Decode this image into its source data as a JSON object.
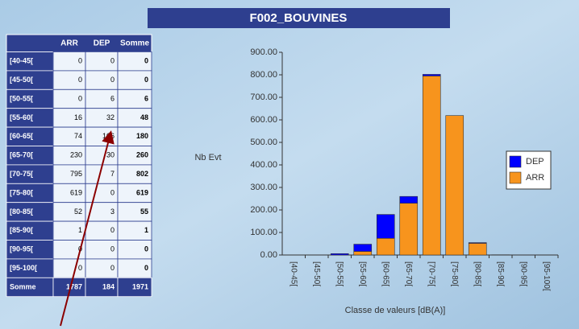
{
  "title": "F002_BOUVINES",
  "table": {
    "header": [
      "ARR",
      "DEP",
      "Somme"
    ],
    "rows": [
      [
        "[40-45[",
        0,
        0,
        0
      ],
      [
        "[45-50[",
        0,
        0,
        0
      ],
      [
        "[50-55[",
        0,
        6,
        6
      ],
      [
        "[55-60[",
        16,
        32,
        48
      ],
      [
        "[60-65[",
        74,
        106,
        180
      ],
      [
        "[65-70[",
        230,
        30,
        260
      ],
      [
        "[70-75[",
        795,
        7,
        802
      ],
      [
        "[75-80[",
        619,
        0,
        619
      ],
      [
        "[80-85[",
        52,
        3,
        55
      ],
      [
        "[85-90[",
        1,
        0,
        1
      ],
      [
        "[90-95[",
        0,
        0,
        0
      ],
      [
        "[95-100[",
        0,
        0,
        0
      ]
    ],
    "total": [
      "Somme",
      1787,
      184,
      1971
    ]
  },
  "chart_data": {
    "type": "stacked_bar",
    "ylabel": "Nb Evt",
    "xlabel": "Classe de valeurs [dB(A)]",
    "categories": [
      "[40-45[",
      "[45-50[",
      "[50-55[",
      "[55-60[",
      "[60-65[",
      "[65-70[",
      "[70-75[",
      "[75-80[",
      "[80-85[",
      "[85-90[",
      "[90-95[",
      "[95-100["
    ],
    "series": [
      {
        "name": "ARR",
        "color": "#f7941d",
        "values": [
          0,
          0,
          0,
          16,
          74,
          230,
          795,
          619,
          52,
          1,
          0,
          0
        ]
      },
      {
        "name": "DEP",
        "color": "#0000ff",
        "values": [
          0,
          0,
          6,
          32,
          106,
          30,
          7,
          0,
          3,
          0,
          0,
          0
        ]
      }
    ],
    "ylim": [
      0,
      900
    ],
    "yticks": [
      {
        "value": 0,
        "label": "0.00"
      },
      {
        "value": 100,
        "label": "100.00"
      },
      {
        "value": 200,
        "label": "200.00"
      },
      {
        "value": 300,
        "label": "300.00"
      },
      {
        "value": 400,
        "label": "400.00"
      },
      {
        "value": 500,
        "label": "500.00"
      },
      {
        "value": 600,
        "label": "600.00"
      },
      {
        "value": 700,
        "label": "700.00"
      },
      {
        "value": 800,
        "label": "800.00"
      },
      {
        "value": 900,
        "label": "900.00"
      }
    ],
    "legend": "right"
  }
}
